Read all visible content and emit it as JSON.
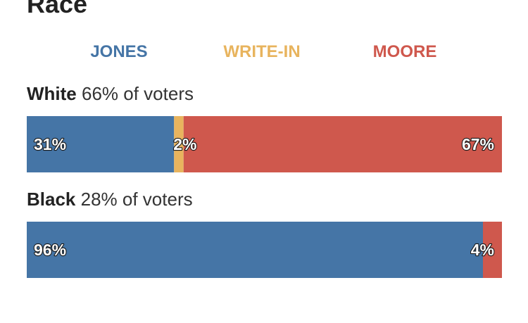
{
  "header": {
    "title": "Race"
  },
  "legend": [
    {
      "label": "JONES",
      "color": "#4575a6"
    },
    {
      "label": "WRITE-IN",
      "color": "#e8b45e"
    },
    {
      "label": "MOORE",
      "color": "#cf584d"
    }
  ],
  "chart_data": {
    "type": "bar",
    "orientation": "horizontal-stacked",
    "title": "Race",
    "series_names": [
      "JONES",
      "WRITE-IN",
      "MOORE"
    ],
    "series_colors": [
      "#4575a6",
      "#e8b45e",
      "#cf584d"
    ],
    "groups": [
      {
        "name": "White",
        "share": "66% of voters",
        "segments": [
          {
            "series": "JONES",
            "value": 31,
            "label": "31%"
          },
          {
            "series": "WRITE-IN",
            "value": 2,
            "label": "2%"
          },
          {
            "series": "MOORE",
            "value": 67,
            "label": "67%"
          }
        ]
      },
      {
        "name": "Black",
        "share": "28% of voters",
        "segments": [
          {
            "series": "JONES",
            "value": 96,
            "label": "96%"
          },
          {
            "series": "MOORE",
            "value": 4,
            "label": "4%"
          }
        ]
      }
    ],
    "xlim": [
      0,
      100
    ],
    "grid": false,
    "legend_position": "top"
  }
}
